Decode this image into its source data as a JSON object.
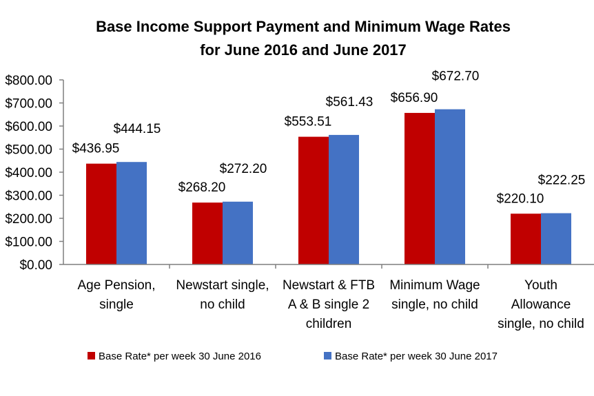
{
  "chart_data": {
    "type": "bar",
    "title": "Base Income Support Payment  and Minimum Wage Rates",
    "subtitle": "for June 2016 and June 2017",
    "categories": [
      [
        "Age Pension,",
        "single"
      ],
      [
        "Newstart single,",
        "no child"
      ],
      [
        "Newstart & FTB",
        "A & B  single 2",
        "children"
      ],
      [
        "Minimum Wage",
        "single, no child"
      ],
      [
        "Youth",
        "Allowance",
        "single, no child"
      ]
    ],
    "series": [
      {
        "name": "Base Rate* per week  30 June  2016",
        "color": "#C00000",
        "values": [
          436.95,
          268.2,
          553.51,
          656.9,
          220.1
        ],
        "labels": [
          "$436.95",
          "$268.20",
          "$553.51",
          "$656.90",
          "$220.10"
        ]
      },
      {
        "name": "Base Rate* per week 30 June 2017",
        "color": "#4472C4",
        "values": [
          444.15,
          272.2,
          561.43,
          672.7,
          222.25
        ],
        "labels": [
          "$444.15",
          "$272.20",
          "$561.43",
          "$672.70",
          "$222.25"
        ]
      }
    ],
    "y_ticks": [
      "$0.00",
      "$100.00",
      "$200.00",
      "$300.00",
      "$400.00",
      "$500.00",
      "$600.00",
      "$700.00",
      "$800.00"
    ],
    "ylim": [
      0,
      800
    ],
    "grid": false,
    "legend_position": "bottom",
    "axis_color": "#7F7F7F"
  }
}
